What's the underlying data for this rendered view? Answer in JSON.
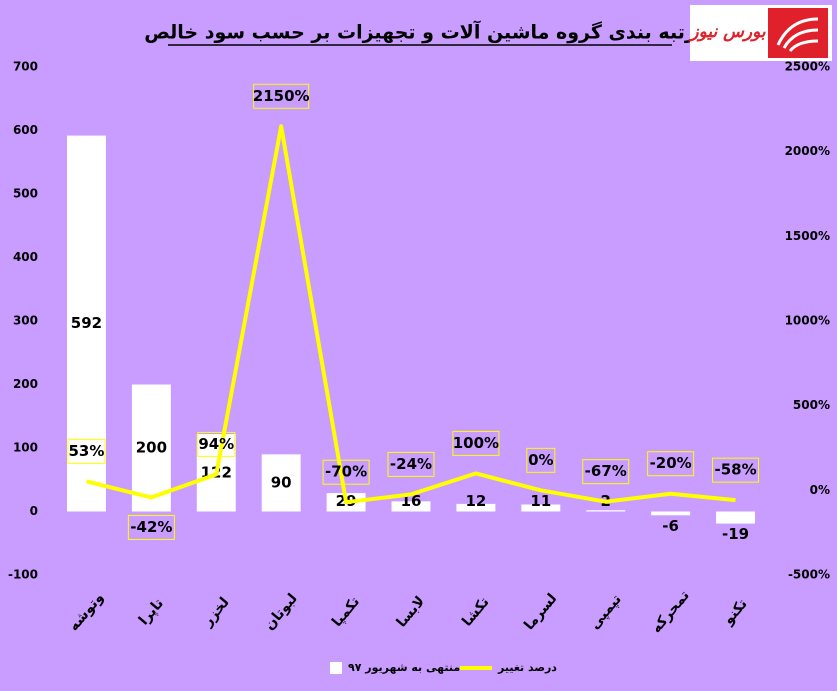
{
  "chart_data": {
    "type": "bar-line",
    "title": "رتبه بندی گروه ماشین آلات و تجهیزات بر حسب سود خالص",
    "logo_text": "بورس نیوز",
    "categories": [
      "وتوشه",
      "تاپرا",
      "لخزر",
      "لبوتان",
      "تکمپا",
      "لابسا",
      "تکشا",
      "لسرما",
      "تپمپی",
      "تمحرکه",
      "تکنو"
    ],
    "series": [
      {
        "name": "منتهی به شهریور ۹۷",
        "type": "bar",
        "color": "#ffffff",
        "values": [
          592,
          200,
          122,
          90,
          29,
          16,
          12,
          11,
          2,
          -6,
          -19
        ]
      },
      {
        "name": "درصد تغییر",
        "type": "line",
        "color": "#ffff00",
        "axis": "y2",
        "values": [
          53,
          -42,
          94,
          2150,
          -70,
          -24,
          100,
          0,
          -67,
          -20,
          -58
        ],
        "value_labels": [
          "53%",
          "-42%",
          "94%",
          "2150%",
          "-70%",
          "-24%",
          "100%",
          "0%",
          "-67%",
          "-20%",
          "-58%"
        ]
      }
    ],
    "ylim": [
      -100,
      700
    ],
    "yticks": [
      -100,
      0,
      100,
      200,
      300,
      400,
      500,
      600,
      700
    ],
    "y2lim": [
      -500,
      2500
    ],
    "y2ticks": [
      {
        "value": -500,
        "label": "-500%"
      },
      {
        "value": 0,
        "label": "0%"
      },
      {
        "value": 500,
        "label": "500%"
      },
      {
        "value": 1000,
        "label": "1000%"
      },
      {
        "value": 1500,
        "label": "1500%"
      },
      {
        "value": 2000,
        "label": "2000%"
      },
      {
        "value": 2500,
        "label": "2500%"
      }
    ],
    "legend": "bottom"
  }
}
